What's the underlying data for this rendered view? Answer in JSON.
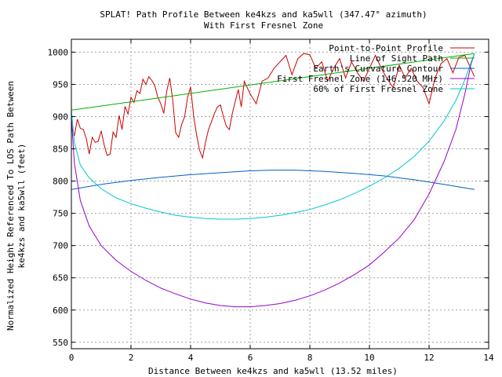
{
  "chart_data": {
    "type": "line",
    "title": "SPLAT! Path Profile Between ke4kzs and ka5wll (347.47° azimuth)",
    "subtitle": "With First Fresnel Zone",
    "xlabel": "Distance Between ke4kzs and ka5wll (13.52 miles)",
    "ylabel_line1": "Normalized Height Referenced To LOS Path Between",
    "ylabel_line2": "ke4kzs and ka5wll (feet)",
    "xlim": [
      0,
      14
    ],
    "ylim": [
      540,
      1020
    ],
    "x_ticks": [
      0,
      2,
      4,
      6,
      8,
      10,
      12,
      14
    ],
    "y_ticks": [
      550,
      600,
      650,
      700,
      750,
      800,
      850,
      900,
      950,
      1000
    ],
    "grid": true,
    "legend_position": "top-right",
    "series": [
      {
        "name": "Point-to-Point Profile",
        "color": "#cc0000",
        "x": [
          0,
          0.1,
          0.2,
          0.3,
          0.4,
          0.5,
          0.6,
          0.7,
          0.8,
          0.9,
          1.0,
          1.1,
          1.2,
          1.3,
          1.4,
          1.5,
          1.6,
          1.7,
          1.8,
          1.9,
          2.0,
          2.1,
          2.2,
          2.3,
          2.4,
          2.5,
          2.6,
          2.7,
          2.8,
          2.9,
          3.0,
          3.1,
          3.2,
          3.3,
          3.4,
          3.5,
          3.6,
          3.7,
          3.8,
          3.9,
          4.0,
          4.1,
          4.2,
          4.3,
          4.4,
          4.5,
          4.6,
          4.7,
          4.8,
          4.9,
          5.0,
          5.1,
          5.2,
          5.3,
          5.4,
          5.5,
          5.6,
          5.7,
          5.8,
          5.9,
          6.0,
          6.2,
          6.4,
          6.6,
          6.8,
          7.0,
          7.2,
          7.4,
          7.6,
          7.8,
          8.0,
          8.2,
          8.4,
          8.6,
          8.8,
          9.0,
          9.2,
          9.4,
          9.6,
          9.8,
          10.0,
          10.2,
          10.4,
          10.6,
          10.8,
          11.0,
          11.2,
          11.4,
          11.6,
          11.8,
          12.0,
          12.2,
          12.4,
          12.6,
          12.8,
          13.0,
          13.2,
          13.4,
          13.52
        ],
        "y": [
          886,
          870,
          896,
          882,
          880,
          866,
          842,
          868,
          860,
          862,
          878,
          856,
          840,
          842,
          876,
          868,
          902,
          880,
          916,
          904,
          930,
          922,
          940,
          936,
          958,
          950,
          962,
          956,
          948,
          930,
          920,
          905,
          940,
          960,
          926,
          875,
          868,
          888,
          900,
          930,
          946,
          902,
          872,
          848,
          836,
          860,
          880,
          892,
          905,
          915,
          918,
          900,
          885,
          880,
          905,
          924,
          942,
          915,
          955,
          945,
          935,
          920,
          955,
          960,
          975,
          985,
          995,
          965,
          990,
          998,
          996,
          975,
          985,
          955,
          975,
          990,
          960,
          985,
          968,
          955,
          975,
          995,
          975,
          958,
          945,
          980,
          960,
          975,
          955,
          945,
          920,
          960,
          982,
          990,
          968,
          992,
          995,
          975,
          962
        ]
      },
      {
        "name": "Line of Sight Path",
        "color": "#00b000",
        "x": [
          0,
          13.52
        ],
        "y": [
          910,
          998
        ]
      },
      {
        "name": "Earth's Curvature Contour",
        "color": "#0060c0",
        "x": [
          0,
          1,
          2,
          3,
          4,
          5,
          6,
          6.76,
          7.5,
          8.5,
          9.5,
          10.5,
          11.5,
          12.5,
          13.52
        ],
        "y": [
          787,
          795,
          801,
          806,
          810,
          813,
          816,
          817,
          817,
          815,
          812,
          808,
          802,
          795,
          787
        ]
      },
      {
        "name": "First Fresnel Zone (146.520 MHz)",
        "color": "#9900cc",
        "x": [
          0,
          0.1,
          0.3,
          0.6,
          1,
          1.5,
          2,
          2.5,
          3,
          3.5,
          4,
          4.5,
          5,
          5.5,
          6,
          6.5,
          7,
          7.5,
          8,
          8.5,
          9,
          9.5,
          10,
          10.5,
          11,
          11.5,
          12,
          12.5,
          12.9,
          13.2,
          13.4,
          13.52
        ],
        "y": [
          900,
          828,
          770,
          730,
          700,
          677,
          660,
          646,
          634,
          625,
          617,
          611,
          607,
          605,
          605,
          607,
          610,
          615,
          622,
          631,
          642,
          655,
          670,
          690,
          712,
          740,
          780,
          830,
          880,
          935,
          980,
          998
        ]
      },
      {
        "name": "60% of First Fresnel Zone",
        "color": "#00c8c8",
        "x": [
          0,
          0.1,
          0.3,
          0.6,
          1,
          1.5,
          2,
          2.5,
          3,
          3.5,
          4,
          4.5,
          5,
          5.5,
          6,
          6.5,
          7,
          7.5,
          8,
          8.5,
          9,
          9.5,
          10,
          10.5,
          11,
          11.5,
          12,
          12.5,
          12.9,
          13.2,
          13.4,
          13.52
        ],
        "y": [
          910,
          860,
          825,
          805,
          788,
          774,
          765,
          758,
          752,
          747,
          744,
          742,
          741,
          741,
          742,
          744,
          747,
          751,
          756,
          763,
          771,
          781,
          792,
          805,
          820,
          838,
          862,
          893,
          925,
          957,
          983,
          998
        ]
      }
    ]
  }
}
